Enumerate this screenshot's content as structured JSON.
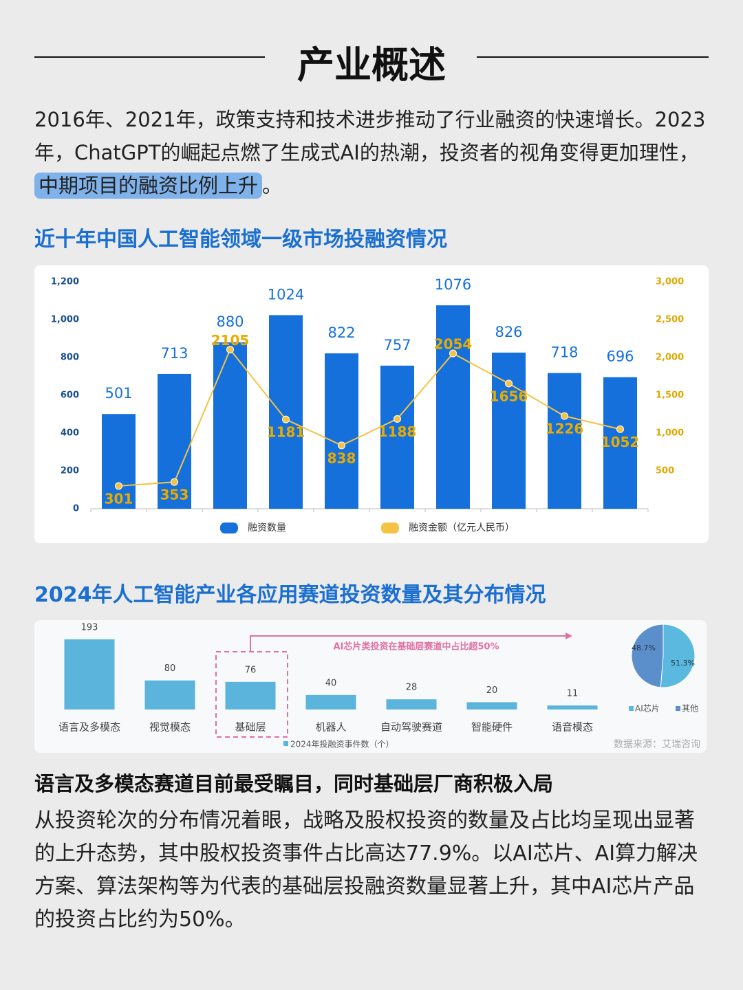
{
  "header": {
    "title": "产业概述"
  },
  "intro": {
    "parts": [
      "2016年、2021年，政策支持和技术进步推动了行业融资的快速增长。2023年，ChatGPT的崛起点燃了生成式AI的热潮，投资者的视角变得更加理性，",
      "中期项目的融资比例上升",
      "。"
    ]
  },
  "chart_data": [
    {
      "type": "bar_line",
      "title": "近十年中国人工智能领域一级市场投融资情况",
      "categories": [
        null,
        null,
        null,
        null,
        null,
        null,
        null,
        null,
        null,
        null
      ],
      "series": [
        {
          "name": "融资数量",
          "color": "#1570dc",
          "type": "bar",
          "values": [
            501,
            713,
            880,
            1024,
            822,
            757,
            1076,
            826,
            718,
            696
          ]
        },
        {
          "name": "融资金额（亿元人民币）",
          "color": "#f5c343",
          "type": "line",
          "axis": "y2",
          "values": [
            301,
            353,
            2105,
            1181,
            838,
            1188,
            2054,
            1656,
            1226,
            1052
          ]
        }
      ],
      "ylim": [
        0,
        1200
      ],
      "yticks": [
        0,
        200,
        400,
        600,
        800,
        {
          "value": 1000,
          "label": "1,000"
        },
        {
          "value": 1200,
          "label": "1,200"
        }
      ],
      "y2lim": [
        0,
        3000
      ],
      "y2ticks": [
        500,
        {
          "value": 1000,
          "label": "1,000"
        },
        {
          "value": 1500,
          "label": "1,500"
        },
        {
          "value": 2000,
          "label": "2,000"
        },
        {
          "value": 2500,
          "label": "2,500"
        },
        {
          "value": 3000,
          "label": "3,000"
        }
      ]
    },
    {
      "type": "bar",
      "title": "2024年人工智能产业各应用赛道投资数量及其分布情况",
      "categories": [
        "语言及多模态",
        "视觉模态",
        "基础层",
        "机器人",
        "自动驾驶赛道",
        "智能硬件",
        "语音模态"
      ],
      "series": [
        {
          "name": "2024年投融资事件数（个）",
          "color": "#5ab4dc",
          "values": [
            193,
            80,
            76,
            40,
            28,
            20,
            11
          ]
        }
      ],
      "annotation": "AI芯片类投资在基础层赛道中占比超50%",
      "source": "数据来源：艾瑞咨询"
    },
    {
      "type": "pie",
      "categories": [
        "AI芯片",
        "其他"
      ],
      "values": [
        51.3,
        48.7
      ],
      "value_labels": [
        "51.3%",
        "48.7%"
      ],
      "colors": [
        "#5bb8de",
        "#5b8fcb"
      ]
    }
  ],
  "summary": {
    "heading": "语言及多模态赛道目前最受瞩目，同时基础层厂商积极入局",
    "body": "从投资轮次的分布情况着眼，战略及股权投资的数量及占比均呈现出显著的上升态势，其中股权投资事件占比高达77.9%。以AI芯片、AI算力解决方案、算法架构等为代表的基础层投融资数量显著上升，其中AI芯片产品的投资占比约为50%。"
  }
}
